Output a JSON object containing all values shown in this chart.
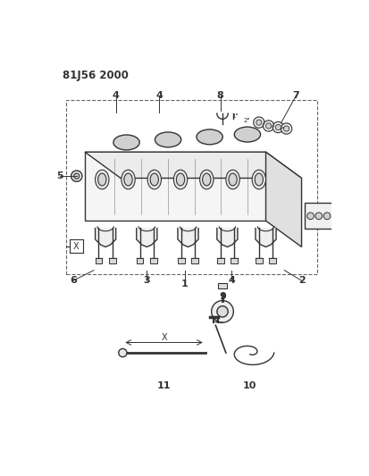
{
  "title": "81J56 2000",
  "bg_color": "#ffffff",
  "lc": "#333333",
  "fig_width": 4.13,
  "fig_height": 5.33,
  "dpi": 100
}
